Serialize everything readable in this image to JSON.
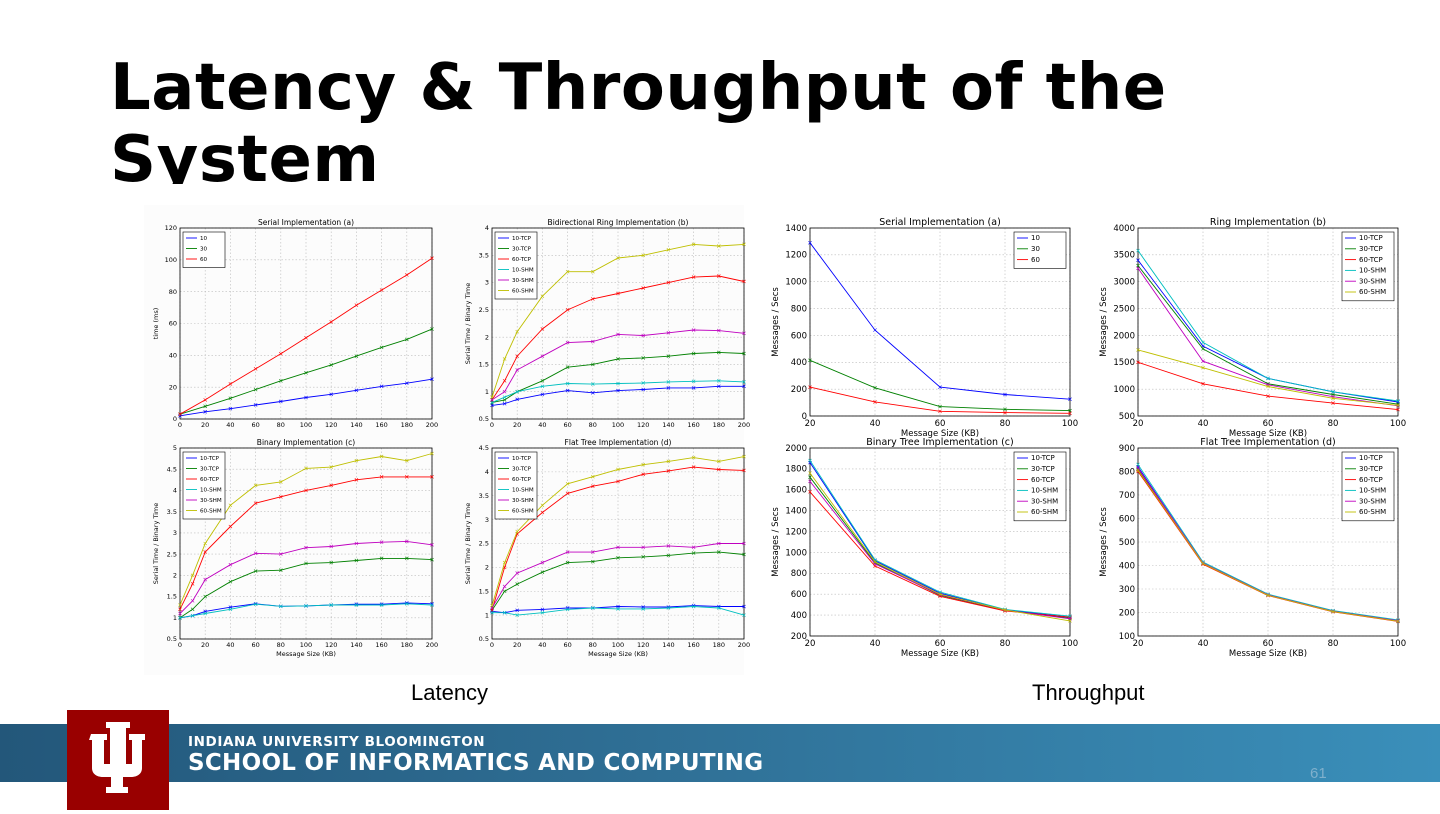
{
  "slide": {
    "title": "Latency & Throughput of the System",
    "caption_left": "Latency",
    "caption_right": "Throughput",
    "footer_university": "INDIANA UNIVERSITY BLOOMINGTON",
    "footer_school": "SCHOOL OF INFORMATICS AND COMPUTING",
    "page_number": "61",
    "colors": {
      "footer_dark": "#23577a",
      "footer_light": "#3a8fba",
      "logo_red": "#990000"
    }
  },
  "chart_data": [
    {
      "type": "line",
      "title": "Serial Implementation (a)",
      "xlabel": "",
      "ylabel": "time (ms)",
      "x": [
        0,
        20,
        40,
        60,
        80,
        100,
        120,
        140,
        160,
        180,
        200
      ],
      "xlim": [
        0,
        200
      ],
      "ylim": [
        0,
        120
      ],
      "xticks": [
        0,
        20,
        40,
        60,
        80,
        100,
        120,
        140,
        160,
        180,
        200
      ],
      "yticks": [
        0,
        20,
        40,
        60,
        80,
        100,
        120
      ],
      "grid": true,
      "legend_position": "top-left",
      "series": [
        {
          "name": "10",
          "color": "#0000ff",
          "values": [
            2,
            4.5,
            6.5,
            8.8,
            11,
            13.5,
            15.5,
            18,
            20.5,
            22.5,
            25
          ]
        },
        {
          "name": "30",
          "color": "#008000",
          "values": [
            3,
            8,
            13,
            18.5,
            24,
            29,
            34,
            39.5,
            45,
            50,
            56.5
          ]
        },
        {
          "name": "60",
          "color": "#ff0000",
          "values": [
            3,
            12,
            22,
            31.5,
            41,
            51,
            61,
            71.5,
            81,
            90.5,
            101
          ]
        }
      ]
    },
    {
      "type": "line",
      "title": "Bidirectional Ring Implementation (b)",
      "xlabel": "",
      "ylabel": "Serial Time / Binary Time",
      "x": [
        0,
        10,
        20,
        40,
        60,
        80,
        100,
        120,
        140,
        160,
        180,
        200
      ],
      "xlim": [
        0,
        200
      ],
      "ylim": [
        0.5,
        4.0
      ],
      "xticks": [
        0,
        20,
        40,
        60,
        80,
        100,
        120,
        140,
        160,
        180,
        200
      ],
      "yticks": [
        0.5,
        1.0,
        1.5,
        2.0,
        2.5,
        3.0,
        3.5,
        4.0
      ],
      "grid": true,
      "legend_position": "top-left",
      "series": [
        {
          "name": "10-TCP",
          "color": "#0000ff",
          "values": [
            0.75,
            0.78,
            0.86,
            0.95,
            1.02,
            0.98,
            1.02,
            1.04,
            1.07,
            1.07,
            1.1,
            1.1
          ]
        },
        {
          "name": "30-TCP",
          "color": "#008000",
          "values": [
            0.8,
            0.85,
            1.0,
            1.2,
            1.45,
            1.5,
            1.6,
            1.62,
            1.65,
            1.7,
            1.72,
            1.7
          ]
        },
        {
          "name": "60-TCP",
          "color": "#ff0000",
          "values": [
            0.85,
            1.2,
            1.65,
            2.15,
            2.5,
            2.7,
            2.8,
            2.9,
            3.0,
            3.1,
            3.12,
            3.02
          ]
        },
        {
          "name": "10-SHM",
          "color": "#00bfbf",
          "values": [
            0.8,
            0.9,
            1.0,
            1.1,
            1.15,
            1.14,
            1.15,
            1.16,
            1.18,
            1.19,
            1.2,
            1.18
          ]
        },
        {
          "name": "30-SHM",
          "color": "#bf00bf",
          "values": [
            0.85,
            1.0,
            1.4,
            1.65,
            1.9,
            1.92,
            2.05,
            2.03,
            2.08,
            2.13,
            2.12,
            2.07
          ]
        },
        {
          "name": "60-SHM",
          "color": "#bfbf00",
          "values": [
            0.9,
            1.6,
            2.1,
            2.75,
            3.2,
            3.2,
            3.45,
            3.5,
            3.6,
            3.7,
            3.67,
            3.7
          ]
        }
      ]
    },
    {
      "type": "line",
      "title": "Serial Implementation (a)",
      "xlabel": "Message Size (KB)",
      "ylabel": "Messages / Secs",
      "x": [
        20,
        40,
        60,
        80,
        100
      ],
      "xlim": [
        20,
        100
      ],
      "ylim": [
        0,
        1400
      ],
      "xticks": [
        20,
        40,
        60,
        80,
        100
      ],
      "yticks": [
        0,
        200,
        400,
        600,
        800,
        1000,
        1200,
        1400
      ],
      "grid": true,
      "legend_position": "top-right",
      "series": [
        {
          "name": "10",
          "color": "#0000ff",
          "values": [
            1290,
            640,
            215,
            160,
            125
          ]
        },
        {
          "name": "30",
          "color": "#008000",
          "values": [
            415,
            210,
            70,
            50,
            40
          ]
        },
        {
          "name": "60",
          "color": "#ff0000",
          "values": [
            215,
            105,
            35,
            25,
            20
          ]
        }
      ]
    },
    {
      "type": "line",
      "title": "Ring Implementation (b)",
      "xlabel": "Message Size (KB)",
      "ylabel": "Messages / Secs",
      "x": [
        20,
        40,
        60,
        80,
        100
      ],
      "xlim": [
        20,
        100
      ],
      "ylim": [
        500,
        4000
      ],
      "xticks": [
        20,
        40,
        60,
        80,
        100
      ],
      "yticks": [
        500,
        1000,
        1500,
        2000,
        2500,
        3000,
        3500,
        4000
      ],
      "grid": true,
      "legend_position": "top-right",
      "series": [
        {
          "name": "10-TCP",
          "color": "#0000ff",
          "values": [
            3400,
            1800,
            1200,
            950,
            760
          ]
        },
        {
          "name": "30-TCP",
          "color": "#008000",
          "values": [
            3300,
            1750,
            1100,
            900,
            720
          ]
        },
        {
          "name": "60-TCP",
          "color": "#ff0000",
          "values": [
            1500,
            1100,
            870,
            740,
            620
          ]
        },
        {
          "name": "10-SHM",
          "color": "#00bfbf",
          "values": [
            3580,
            1870,
            1200,
            950,
            780
          ]
        },
        {
          "name": "30-SHM",
          "color": "#bf00bf",
          "values": [
            3250,
            1520,
            1080,
            860,
            690
          ]
        },
        {
          "name": "60-SHM",
          "color": "#bfbf00",
          "values": [
            1730,
            1400,
            1050,
            830,
            700
          ]
        }
      ]
    },
    {
      "type": "line",
      "title": "Binary Implementation (c)",
      "xlabel": "Message Size (KB)",
      "ylabel": "Serial Time / Binary Time",
      "x": [
        0,
        10,
        20,
        40,
        60,
        80,
        100,
        120,
        140,
        160,
        180,
        200
      ],
      "xlim": [
        0,
        200
      ],
      "ylim": [
        0.5,
        5.0
      ],
      "xticks": [
        0,
        20,
        40,
        60,
        80,
        100,
        120,
        140,
        160,
        180,
        200
      ],
      "yticks": [
        0.5,
        1.0,
        1.5,
        2.0,
        2.5,
        3.0,
        3.5,
        4.0,
        4.5,
        5.0
      ],
      "grid": true,
      "legend_position": "top-left",
      "series": [
        {
          "name": "10-TCP",
          "color": "#0000ff",
          "values": [
            1.0,
            1.05,
            1.15,
            1.25,
            1.33,
            1.27,
            1.28,
            1.3,
            1.32,
            1.32,
            1.35,
            1.33
          ]
        },
        {
          "name": "30-TCP",
          "color": "#008000",
          "values": [
            1.0,
            1.2,
            1.5,
            1.85,
            2.1,
            2.12,
            2.28,
            2.3,
            2.35,
            2.4,
            2.4,
            2.37
          ]
        },
        {
          "name": "60-TCP",
          "color": "#ff0000",
          "values": [
            1.2,
            1.8,
            2.55,
            3.15,
            3.7,
            3.85,
            4.0,
            4.12,
            4.25,
            4.32,
            4.32,
            4.32
          ]
        },
        {
          "name": "10-SHM",
          "color": "#00bfbf",
          "values": [
            1.0,
            1.05,
            1.1,
            1.2,
            1.32,
            1.27,
            1.28,
            1.3,
            1.3,
            1.3,
            1.33,
            1.3
          ]
        },
        {
          "name": "30-SHM",
          "color": "#bf00bf",
          "values": [
            1.1,
            1.4,
            1.9,
            2.25,
            2.52,
            2.5,
            2.65,
            2.68,
            2.75,
            2.78,
            2.8,
            2.72
          ]
        },
        {
          "name": "60-SHM",
          "color": "#bfbf00",
          "values": [
            1.3,
            2.0,
            2.75,
            3.65,
            4.12,
            4.2,
            4.52,
            4.55,
            4.7,
            4.8,
            4.7,
            4.87
          ]
        }
      ]
    },
    {
      "type": "line",
      "title": "Flat Tree Implementation (d)",
      "xlabel": "Message Size (KB)",
      "ylabel": "Serial Time / Binary Time",
      "x": [
        0,
        10,
        20,
        40,
        60,
        80,
        100,
        120,
        140,
        160,
        180,
        200
      ],
      "xlim": [
        0,
        200
      ],
      "ylim": [
        0.5,
        4.5
      ],
      "xticks": [
        0,
        20,
        40,
        60,
        80,
        100,
        120,
        140,
        160,
        180,
        200
      ],
      "yticks": [
        0.5,
        1.0,
        1.5,
        2.0,
        2.5,
        3.0,
        3.5,
        4.0,
        4.5
      ],
      "grid": true,
      "legend_position": "top-left",
      "series": [
        {
          "name": "10-TCP",
          "color": "#0000ff",
          "values": [
            1.08,
            1.05,
            1.1,
            1.12,
            1.15,
            1.15,
            1.18,
            1.17,
            1.17,
            1.2,
            1.18,
            1.18
          ]
        },
        {
          "name": "30-TCP",
          "color": "#008000",
          "values": [
            1.1,
            1.5,
            1.65,
            1.9,
            2.1,
            2.12,
            2.2,
            2.22,
            2.25,
            2.3,
            2.32,
            2.27
          ]
        },
        {
          "name": "60-TCP",
          "color": "#ff0000",
          "values": [
            1.1,
            2.0,
            2.7,
            3.15,
            3.55,
            3.7,
            3.8,
            3.95,
            4.02,
            4.1,
            4.05,
            4.03
          ]
        },
        {
          "name": "10-SHM",
          "color": "#00bfbf",
          "values": [
            1.05,
            1.05,
            1.0,
            1.05,
            1.12,
            1.15,
            1.13,
            1.13,
            1.15,
            1.18,
            1.15,
            1.0
          ]
        },
        {
          "name": "30-SHM",
          "color": "#bf00bf",
          "values": [
            1.15,
            1.6,
            1.88,
            2.1,
            2.32,
            2.32,
            2.42,
            2.42,
            2.45,
            2.42,
            2.5,
            2.5
          ]
        },
        {
          "name": "60-SHM",
          "color": "#bfbf00",
          "values": [
            1.2,
            2.1,
            2.75,
            3.3,
            3.75,
            3.9,
            4.05,
            4.15,
            4.22,
            4.3,
            4.22,
            4.32
          ]
        }
      ]
    },
    {
      "type": "line",
      "title": "Binary Tree Implementation (c)",
      "xlabel": "Message Size (KB)",
      "ylabel": "Messages / Secs",
      "x": [
        20,
        40,
        60,
        80,
        100
      ],
      "xlim": [
        20,
        100
      ],
      "ylim": [
        200,
        2000
      ],
      "xticks": [
        20,
        40,
        60,
        80,
        100
      ],
      "yticks": [
        200,
        400,
        600,
        800,
        1000,
        1200,
        1400,
        1600,
        1800,
        2000
      ],
      "grid": true,
      "legend_position": "top-right",
      "series": [
        {
          "name": "10-TCP",
          "color": "#0000ff",
          "values": [
            1860,
            920,
            610,
            450,
            380
          ]
        },
        {
          "name": "30-TCP",
          "color": "#008000",
          "values": [
            1720,
            900,
            590,
            445,
            370
          ]
        },
        {
          "name": "60-TCP",
          "color": "#ff0000",
          "values": [
            1580,
            870,
            580,
            440,
            380
          ]
        },
        {
          "name": "10-SHM",
          "color": "#00bfbf",
          "values": [
            1880,
            930,
            620,
            455,
            390
          ]
        },
        {
          "name": "30-SHM",
          "color": "#bf00bf",
          "values": [
            1680,
            890,
            595,
            448,
            365
          ]
        },
        {
          "name": "60-SHM",
          "color": "#bfbf00",
          "values": [
            1760,
            910,
            600,
            450,
            345
          ]
        }
      ]
    },
    {
      "type": "line",
      "title": "Flat Tree Implementation (d)",
      "xlabel": "Message Size (KB)",
      "ylabel": "Messages / Secs",
      "x": [
        20,
        40,
        60,
        80,
        100
      ],
      "xlim": [
        20,
        100
      ],
      "ylim": [
        100,
        900
      ],
      "xticks": [
        20,
        40,
        60,
        80,
        100
      ],
      "yticks": [
        100,
        200,
        300,
        400,
        500,
        600,
        700,
        800,
        900
      ],
      "grid": true,
      "legend_position": "top-right",
      "series": [
        {
          "name": "10-TCP",
          "color": "#0000ff",
          "values": [
            820,
            410,
            275,
            205,
            165
          ]
        },
        {
          "name": "30-TCP",
          "color": "#008000",
          "values": [
            810,
            410,
            275,
            205,
            165
          ]
        },
        {
          "name": "60-TCP",
          "color": "#ff0000",
          "values": [
            800,
            405,
            272,
            203,
            162
          ]
        },
        {
          "name": "10-SHM",
          "color": "#00bfbf",
          "values": [
            830,
            415,
            278,
            208,
            168
          ]
        },
        {
          "name": "30-SHM",
          "color": "#bf00bf",
          "values": [
            815,
            410,
            275,
            205,
            165
          ]
        },
        {
          "name": "60-SHM",
          "color": "#bfbf00",
          "values": [
            805,
            408,
            273,
            204,
            163
          ]
        }
      ]
    }
  ]
}
